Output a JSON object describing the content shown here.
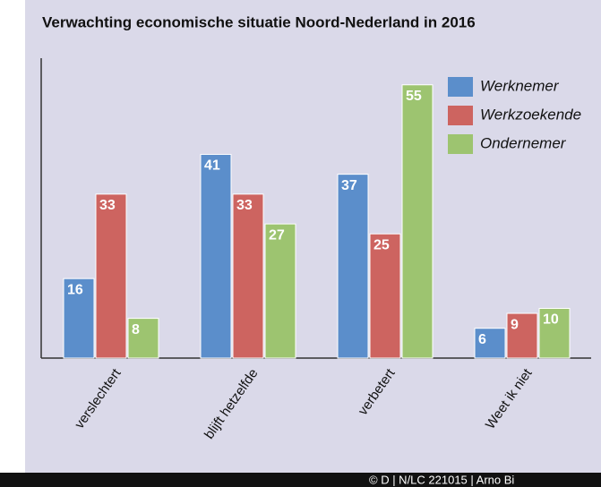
{
  "chart_data": {
    "type": "bar",
    "title": "Verwachting economische situatie Noord-Nederland in 2016",
    "categories": [
      "verslechtert",
      "blijft hetzelfde",
      "verbetert",
      "Weet ik niet"
    ],
    "series": [
      {
        "name": "Werknemer",
        "color": "#5b8ecb",
        "values": [
          16,
          41,
          37,
          6
        ]
      },
      {
        "name": "Werkzoekende",
        "color": "#cd6460",
        "values": [
          33,
          33,
          25,
          9
        ]
      },
      {
        "name": "Ondernemer",
        "color": "#9dc470",
        "values": [
          8,
          27,
          55,
          10
        ]
      }
    ],
    "ylim": [
      0,
      60
    ],
    "legend": "upper right",
    "footer": "© D | N/LC 221015 | Arno Bi"
  }
}
